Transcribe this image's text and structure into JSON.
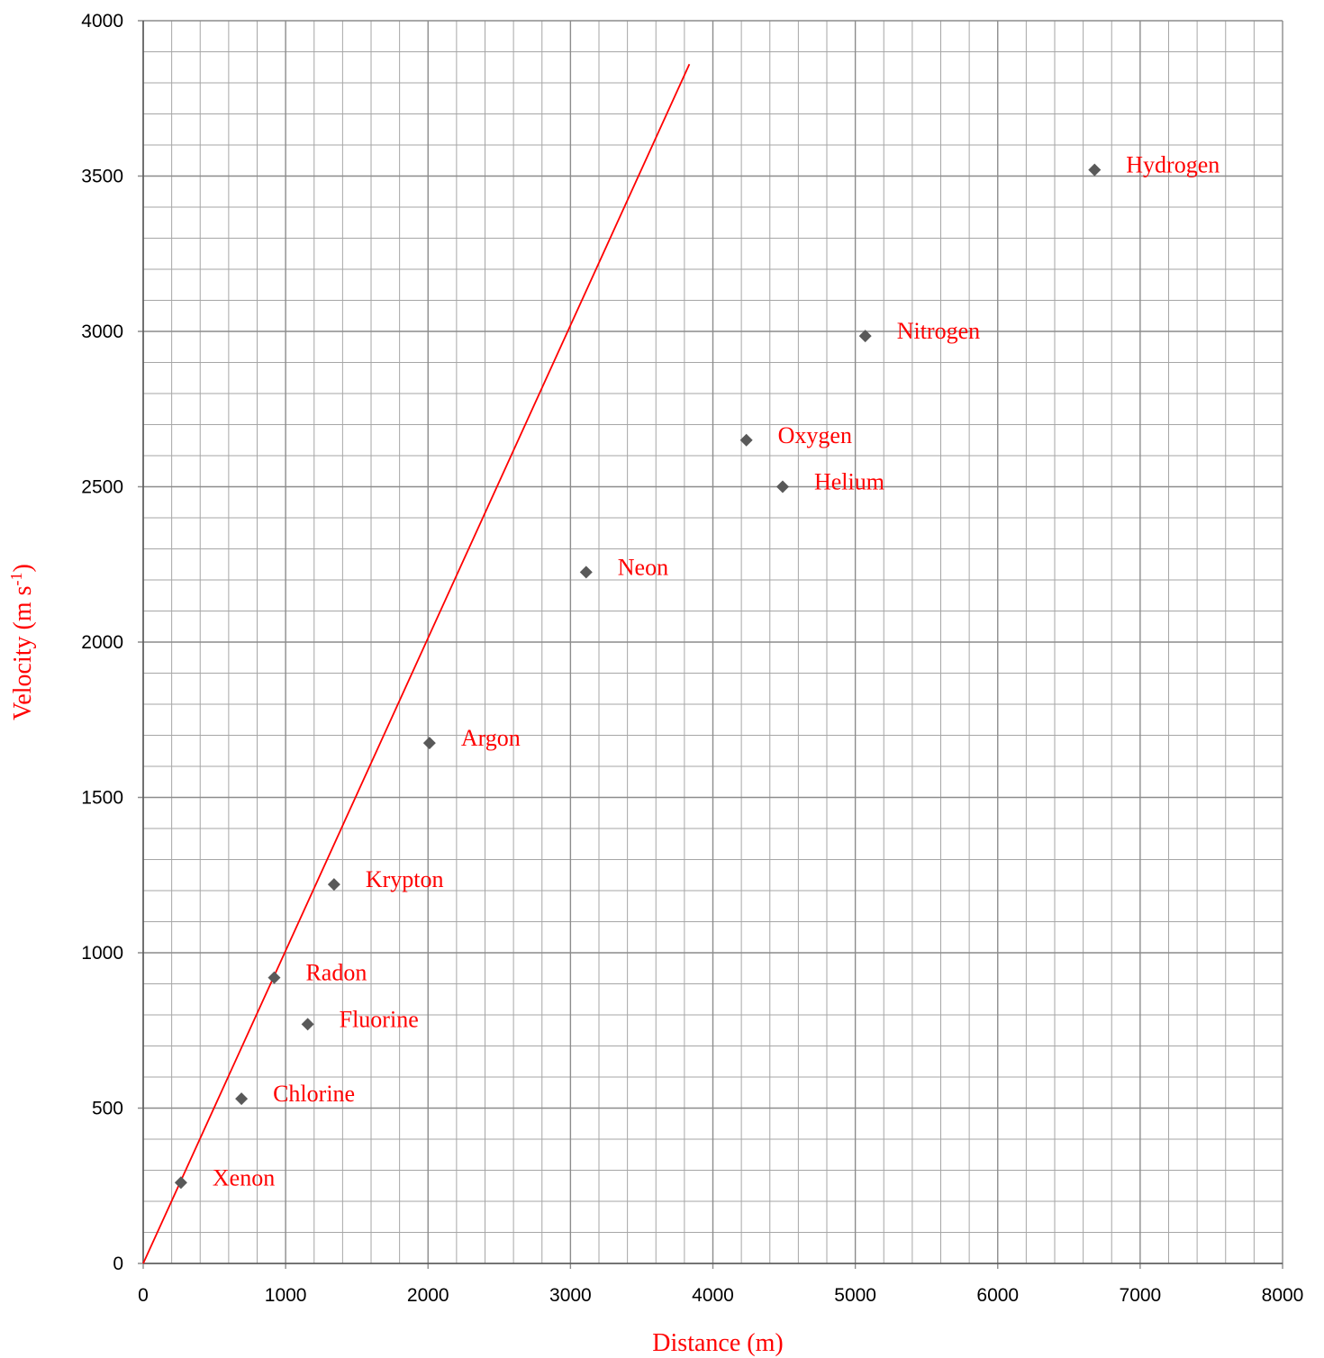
{
  "colors": {
    "background": "#ffffff",
    "major_grid": "#8c8c8c",
    "minor_grid": "#a6a6a6",
    "axis": "#595959",
    "marker": "#595959",
    "label": "#ff0000",
    "fit_line": "#ff0000"
  },
  "chart_data": {
    "type": "scatter",
    "title": "",
    "xlabel": "Distance (m)",
    "ylabel_main": "Velocity (m s",
    "ylabel_sup": "-1",
    "ylabel_tail": ")",
    "xlim": [
      0,
      8000
    ],
    "ylim": [
      0,
      4000
    ],
    "x_major_step": 1000,
    "y_major_step": 500,
    "x_minor_step": 200,
    "y_minor_step": 100,
    "grid": true,
    "legend": "none",
    "x_ticks": [
      "0",
      "1000",
      "2000",
      "3000",
      "4000",
      "5000",
      "6000",
      "7000",
      "8000"
    ],
    "y_ticks": [
      "0",
      "500",
      "1000",
      "1500",
      "2000",
      "2500",
      "3000",
      "3500",
      "4000"
    ],
    "points": [
      {
        "label": "Xenon",
        "x": 265,
        "y": 260
      },
      {
        "label": "Chlorine",
        "x": 690,
        "y": 530
      },
      {
        "label": "Radon",
        "x": 920,
        "y": 920
      },
      {
        "label": "Fluorine",
        "x": 1155,
        "y": 770
      },
      {
        "label": "Krypton",
        "x": 1340,
        "y": 1220
      },
      {
        "label": "Argon",
        "x": 2010,
        "y": 1675
      },
      {
        "label": "Neon",
        "x": 3110,
        "y": 2225
      },
      {
        "label": "Oxygen",
        "x": 4235,
        "y": 2650
      },
      {
        "label": "Helium",
        "x": 4490,
        "y": 2500
      },
      {
        "label": "Nitrogen",
        "x": 5070,
        "y": 2985
      },
      {
        "label": "Hydrogen",
        "x": 6680,
        "y": 3520
      }
    ],
    "fit_line": {
      "x": [
        0,
        3835
      ],
      "y": [
        0,
        3860
      ]
    }
  }
}
